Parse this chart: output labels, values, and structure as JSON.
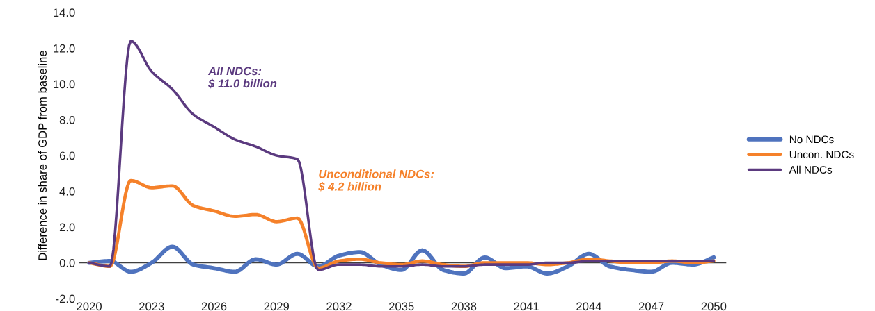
{
  "chart_data": {
    "type": "line",
    "ylabel": "Difference in share of GDP from baseline",
    "x": [
      2020,
      2021,
      2022,
      2023,
      2024,
      2025,
      2026,
      2027,
      2028,
      2029,
      2030,
      2031,
      2032,
      2033,
      2034,
      2035,
      2036,
      2037,
      2038,
      2039,
      2040,
      2041,
      2042,
      2043,
      2044,
      2045,
      2046,
      2047,
      2048,
      2049,
      2050
    ],
    "series": [
      {
        "name": "No NDCs",
        "color": "#4f73be",
        "values": [
          0,
          0.1,
          -0.5,
          0,
          0.9,
          -0.1,
          -0.3,
          -0.5,
          0.2,
          -0.1,
          0.5,
          -0.2,
          0.4,
          0.6,
          -0.1,
          -0.4,
          0.7,
          -0.4,
          -0.6,
          0.3,
          -0.3,
          -0.2,
          -0.6,
          -0.2,
          0.5,
          -0.2,
          -0.4,
          -0.5,
          0,
          -0.1,
          0.3
        ]
      },
      {
        "name": "Uncon. NDCs",
        "color": "#f5812a",
        "values": [
          0,
          -0.2,
          4.6,
          4.2,
          4.3,
          3.2,
          2.9,
          2.6,
          2.7,
          2.3,
          2.5,
          -0.3,
          0.1,
          0.2,
          0,
          -0.1,
          0.1,
          -0.1,
          -0.2,
          0,
          0,
          0,
          -0.1,
          0,
          0.2,
          0.1,
          0,
          0,
          0.1,
          0,
          0.1
        ]
      },
      {
        "name": "All NDCs",
        "color": "#5b3a7f",
        "values": [
          0,
          -0.2,
          12.4,
          10.7,
          9.7,
          8.3,
          7.6,
          6.9,
          6.5,
          6.0,
          5.8,
          -0.4,
          -0.1,
          -0.1,
          -0.2,
          -0.2,
          -0.1,
          -0.2,
          -0.2,
          -0.1,
          -0.1,
          -0.1,
          0,
          0,
          0.1,
          0.1,
          0.1,
          0.1,
          0.1,
          0.1,
          0.1
        ]
      }
    ],
    "xlim": [
      2019.5,
      2050.6
    ],
    "xticks": [
      2020,
      2023,
      2026,
      2029,
      2032,
      2035,
      2038,
      2041,
      2044,
      2047,
      2050
    ],
    "ylim": [
      -2,
      14
    ],
    "yticks": [
      {
        "value": -2,
        "label": "-2.0"
      },
      {
        "value": 0,
        "label": "0.0"
      },
      {
        "value": 2,
        "label": "2.0"
      },
      {
        "value": 4,
        "label": "4.0"
      },
      {
        "value": 6,
        "label": "6.0"
      },
      {
        "value": 8,
        "label": "8.0"
      },
      {
        "value": 10,
        "label": "10.0"
      },
      {
        "value": 12,
        "label": "12.0"
      },
      {
        "value": 14,
        "label": "14.0"
      }
    ],
    "ref_lines": [
      {
        "axis": "y",
        "value": 0,
        "color": "#404040"
      }
    ],
    "annotations": [
      "All NDCs:\n$ 11.0 billion",
      "Unconditional NDCs:\n$ 4.2 billion"
    ],
    "grid": false,
    "legend": "right",
    "marker": "none",
    "line_style": "solid"
  }
}
